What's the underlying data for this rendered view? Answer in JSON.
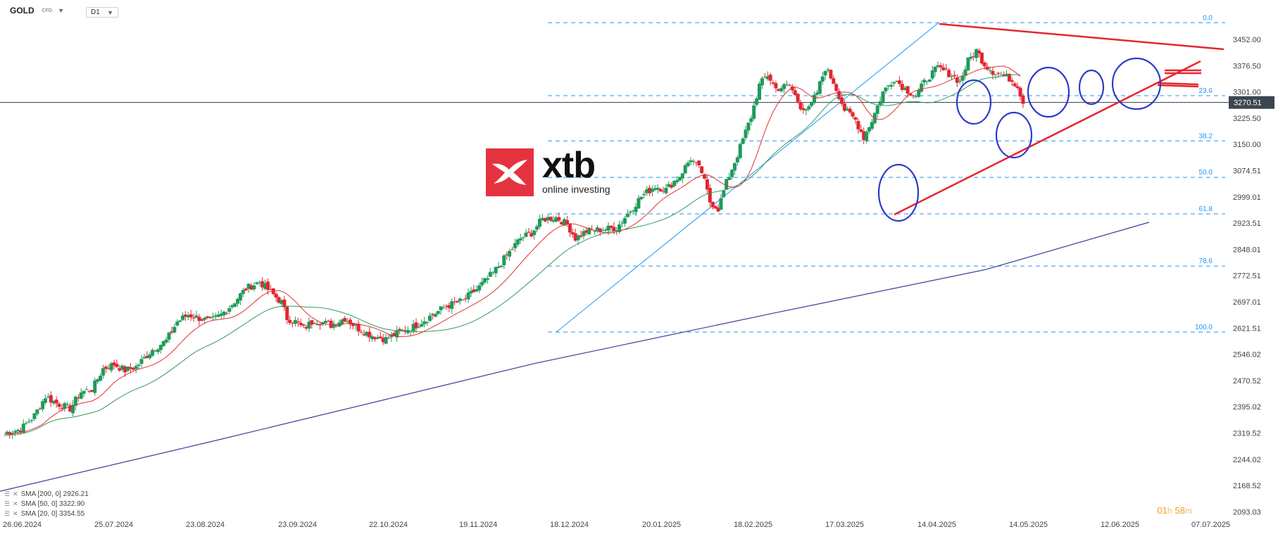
{
  "header": {
    "symbol": "GOLD",
    "symbol_sub": "CFD",
    "timeframe": "D1"
  },
  "price_axis": {
    "labels": [
      "3452.00",
      "3376.50",
      "3301.00",
      "3225.50",
      "3150.00",
      "3074.51",
      "2999.01",
      "2923.51",
      "2848.01",
      "2772.51",
      "2697.01",
      "2621.51",
      "2546.02",
      "2470.52",
      "2395.02",
      "2319.52",
      "2244.02",
      "2168.52",
      "2093.03"
    ],
    "current_price": "3270.51"
  },
  "date_axis": {
    "labels": [
      "26.06.2024",
      "25.07.2024",
      "23.08.2024",
      "23.09.2024",
      "22.10.2024",
      "19.11.2024",
      "18.12.2024",
      "20.01.2025",
      "18.02.2025",
      "17.03.2025",
      "14.04.2025",
      "14.05.2025",
      "12.06.2025",
      "07.07.2025"
    ]
  },
  "fibonacci": {
    "levels": [
      {
        "label": "0.0",
        "price": 3500
      },
      {
        "label": "23.6",
        "price": 3290
      },
      {
        "label": "38.2",
        "price": 3160
      },
      {
        "label": "50.0",
        "price": 3055
      },
      {
        "label": "61.8",
        "price": 2950
      },
      {
        "label": "78.6",
        "price": 2800
      },
      {
        "label": "100.0",
        "price": 2610
      }
    ]
  },
  "indicators": [
    {
      "label": "SMA [200, 0] 2926.21",
      "color": "#3a3d9c"
    },
    {
      "label": "SMA [50, 0] 3322.90",
      "color": "#2e9b5e"
    },
    {
      "label": "SMA [20, 0] 3354.55",
      "color": "#e03030"
    }
  ],
  "timer": {
    "h": "01",
    "h_unit": "h",
    "m": "58",
    "m_unit": "m"
  },
  "logo": {
    "name": "xtb",
    "tagline": "online investing"
  },
  "colors": {
    "bull": "#1f9a5a",
    "bear": "#e0262f",
    "fib": "#2196f3",
    "trend": "#e8252c",
    "circle": "#2e3bc9",
    "sma200": "#3a3d9c",
    "sma50": "#2e9b5e",
    "sma20": "#e03030",
    "price_line": "#2b3a4a"
  },
  "chart_data": {
    "type": "candlestick",
    "instrument": "GOLD",
    "timeframe": "D1",
    "ylim": [
      2093.03,
      3500
    ],
    "x": [
      "26.06.2024",
      "25.07.2024",
      "23.08.2024",
      "23.09.2024",
      "22.10.2024",
      "19.11.2024",
      "18.12.2024",
      "20.01.2025",
      "18.02.2025",
      "17.03.2025",
      "14.04.2025",
      "14.05.2025",
      "12.06.2025"
    ],
    "close_path": [
      [
        0,
        2320
      ],
      [
        12,
        2330
      ],
      [
        22,
        2370
      ],
      [
        30,
        2425
      ],
      [
        38,
        2405
      ],
      [
        48,
        2390
      ],
      [
        56,
        2438
      ],
      [
        64,
        2445
      ],
      [
        72,
        2505
      ],
      [
        80,
        2517
      ],
      [
        88,
        2500
      ],
      [
        96,
        2510
      ],
      [
        108,
        2560
      ],
      [
        118,
        2585
      ],
      [
        126,
        2640
      ],
      [
        134,
        2660
      ],
      [
        142,
        2650
      ],
      [
        150,
        2640
      ],
      [
        158,
        2660
      ],
      [
        166,
        2690
      ],
      [
        176,
        2735
      ],
      [
        186,
        2755
      ],
      [
        194,
        2725
      ],
      [
        202,
        2695
      ],
      [
        206,
        2650
      ],
      [
        212,
        2640
      ],
      [
        218,
        2620
      ],
      [
        226,
        2645
      ],
      [
        238,
        2630
      ],
      [
        248,
        2650
      ],
      [
        258,
        2620
      ],
      [
        268,
        2600
      ],
      [
        278,
        2590
      ],
      [
        288,
        2610
      ],
      [
        298,
        2625
      ],
      [
        310,
        2655
      ],
      [
        322,
        2685
      ],
      [
        334,
        2700
      ],
      [
        346,
        2740
      ],
      [
        356,
        2780
      ],
      [
        366,
        2830
      ],
      [
        376,
        2880
      ],
      [
        384,
        2895
      ],
      [
        392,
        2935
      ],
      [
        402,
        2940
      ],
      [
        410,
        2920
      ],
      [
        416,
        2880
      ],
      [
        424,
        2900
      ],
      [
        434,
        2905
      ],
      [
        446,
        2910
      ],
      [
        456,
        2960
      ],
      [
        464,
        3000
      ],
      [
        474,
        3030
      ],
      [
        482,
        3020
      ],
      [
        492,
        3060
      ],
      [
        500,
        3110
      ],
      [
        508,
        3070
      ],
      [
        514,
        2985
      ],
      [
        520,
        2965
      ],
      [
        526,
        3040
      ],
      [
        534,
        3120
      ],
      [
        544,
        3230
      ],
      [
        550,
        3320
      ],
      [
        556,
        3350
      ],
      [
        562,
        3310
      ],
      [
        572,
        3320
      ],
      [
        580,
        3260
      ],
      [
        586,
        3250
      ],
      [
        592,
        3300
      ],
      [
        598,
        3370
      ],
      [
        604,
        3330
      ],
      [
        612,
        3250
      ],
      [
        620,
        3220
      ],
      [
        626,
        3170
      ],
      [
        632,
        3220
      ],
      [
        640,
        3300
      ],
      [
        648,
        3340
      ],
      [
        656,
        3310
      ],
      [
        664,
        3290
      ],
      [
        672,
        3340
      ],
      [
        680,
        3370
      ],
      [
        690,
        3350
      ],
      [
        696,
        3330
      ],
      [
        702,
        3390
      ],
      [
        708,
        3420
      ],
      [
        714,
        3380
      ],
      [
        720,
        3360
      ],
      [
        726,
        3350
      ],
      [
        732,
        3340
      ],
      [
        738,
        3320
      ],
      [
        742,
        3270.51
      ]
    ],
    "sma": [
      {
        "name": "SMA [20, 0]",
        "value": 3354.55
      },
      {
        "name": "SMA [50, 0]",
        "value": 3322.9
      },
      {
        "name": "SMA [200, 0]",
        "value": 2926.21
      }
    ],
    "last_price": 3270.51
  }
}
